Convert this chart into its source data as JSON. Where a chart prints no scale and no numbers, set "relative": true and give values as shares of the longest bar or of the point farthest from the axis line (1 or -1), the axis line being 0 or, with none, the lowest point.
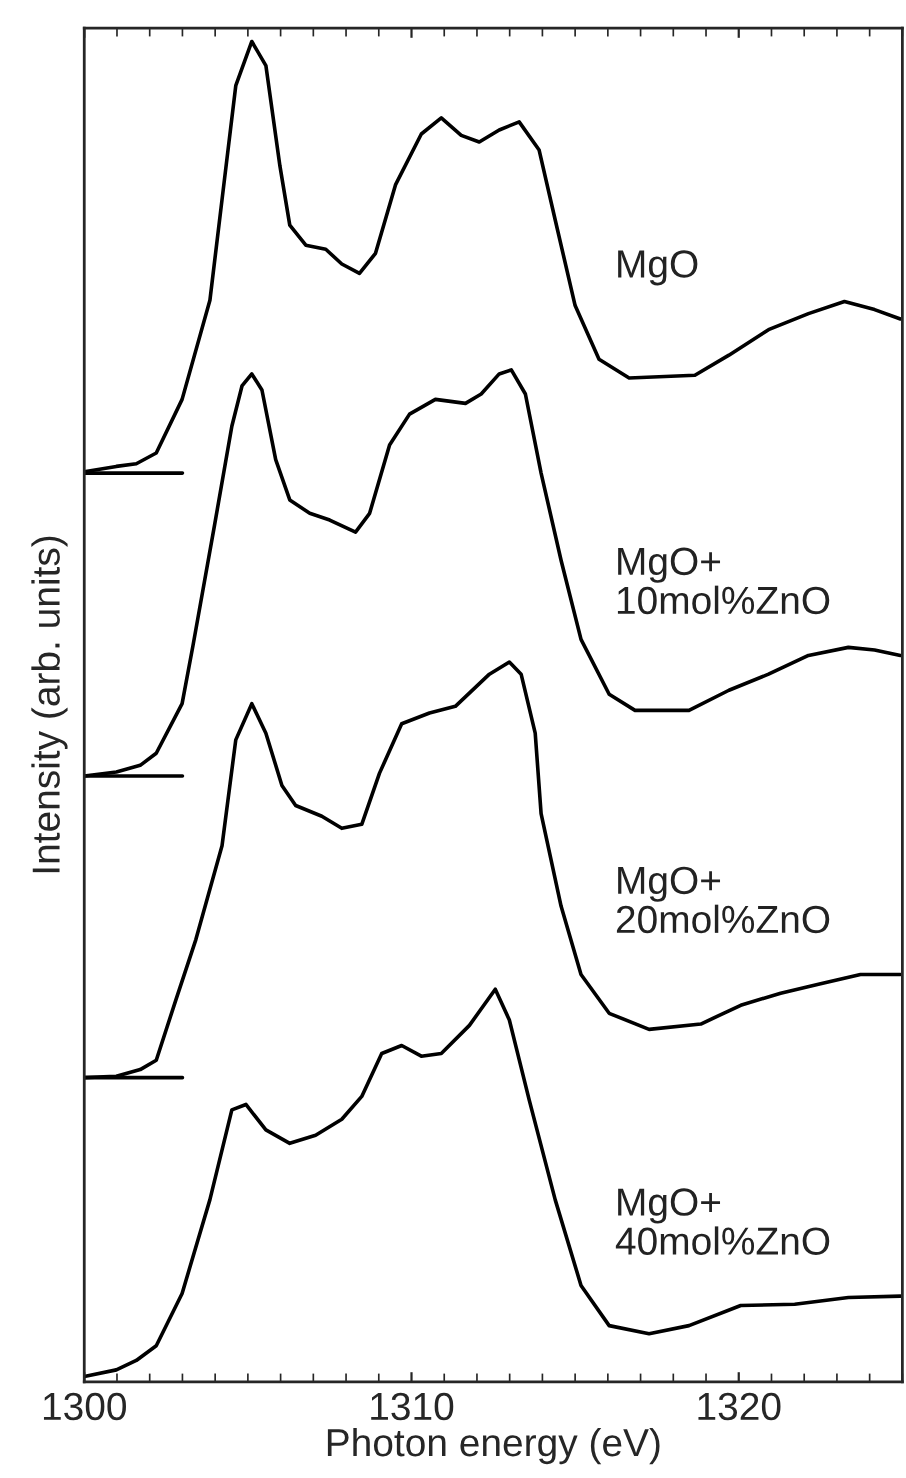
{
  "chart_data": {
    "type": "line",
    "relative": true,
    "xlabel": "Photon energy (eV)",
    "ylabel": "Intensity (arb. units)",
    "xlim": [
      1300,
      1325
    ],
    "xticks": [
      1300,
      1310,
      1320
    ],
    "grid": false,
    "legend": false,
    "series": [
      {
        "name": "MgO",
        "color": "#000000",
        "x": [
          1300.0,
          1300.98,
          1301.59,
          1302.2,
          1302.99,
          1303.84,
          1304.21,
          1304.63,
          1305.12,
          1305.55,
          1305.98,
          1306.28,
          1306.77,
          1307.38,
          1307.87,
          1308.41,
          1308.9,
          1309.51,
          1310.3,
          1310.91,
          1311.52,
          1312.07,
          1312.68,
          1313.29,
          1313.9,
          1314.39,
          1315.0,
          1315.73,
          1316.65,
          1318.66,
          1319.7,
          1320.91,
          1322.13,
          1323.23,
          1324.15,
          1324.94
        ],
        "values": [
          0.679,
          0.683,
          0.685,
          0.693,
          0.733,
          0.807,
          0.882,
          0.967,
          1.0,
          0.982,
          0.907,
          0.863,
          0.848,
          0.845,
          0.834,
          0.827,
          0.842,
          0.893,
          0.931,
          0.943,
          0.93,
          0.925,
          0.934,
          0.94,
          0.919,
          0.867,
          0.803,
          0.763,
          0.749,
          0.751,
          0.766,
          0.785,
          0.797,
          0.806,
          0.8,
          0.793
        ]
      },
      {
        "name": "MgO+\n10mol%ZnO",
        "color": "#000000",
        "x": [
          1300.0,
          1300.98,
          1301.71,
          1302.2,
          1302.99,
          1303.32,
          1303.98,
          1304.51,
          1304.82,
          1305.12,
          1305.43,
          1305.85,
          1306.28,
          1306.89,
          1307.5,
          1308.29,
          1308.72,
          1309.33,
          1309.94,
          1310.73,
          1311.65,
          1312.13,
          1312.68,
          1313.05,
          1313.48,
          1313.96,
          1314.57,
          1315.18,
          1316.04,
          1316.83,
          1318.48,
          1319.7,
          1320.91,
          1322.13,
          1323.35,
          1324.15,
          1324.94
        ],
        "values": [
          0.452,
          0.455,
          0.46,
          0.469,
          0.506,
          0.549,
          0.639,
          0.713,
          0.743,
          0.752,
          0.74,
          0.688,
          0.658,
          0.648,
          0.643,
          0.634,
          0.648,
          0.699,
          0.722,
          0.733,
          0.73,
          0.737,
          0.752,
          0.755,
          0.737,
          0.678,
          0.613,
          0.554,
          0.513,
          0.501,
          0.501,
          0.516,
          0.528,
          0.542,
          0.548,
          0.546,
          0.542
        ]
      },
      {
        "name": "MgO+\n20mol%ZnO",
        "color": "#000000",
        "x": [
          1300.0,
          1300.98,
          1301.71,
          1302.2,
          1302.8,
          1303.41,
          1304.21,
          1304.63,
          1305.12,
          1305.55,
          1306.04,
          1306.46,
          1307.26,
          1307.87,
          1308.48,
          1309.02,
          1309.7,
          1310.55,
          1311.34,
          1312.38,
          1312.99,
          1313.35,
          1313.78,
          1313.96,
          1314.57,
          1315.18,
          1316.04,
          1317.26,
          1318.84,
          1320.06,
          1321.28,
          1322.5,
          1323.72,
          1324.94
        ],
        "values": [
          0.227,
          0.228,
          0.233,
          0.24,
          0.285,
          0.33,
          0.4,
          0.479,
          0.506,
          0.484,
          0.445,
          0.43,
          0.422,
          0.413,
          0.416,
          0.454,
          0.491,
          0.499,
          0.504,
          0.528,
          0.537,
          0.528,
          0.484,
          0.424,
          0.355,
          0.304,
          0.275,
          0.263,
          0.267,
          0.281,
          0.29,
          0.297,
          0.304,
          0.304
        ]
      },
      {
        "name": "MgO+\n40mol%ZnO",
        "color": "#000000",
        "x": [
          1300.0,
          1300.98,
          1301.59,
          1302.2,
          1302.99,
          1303.84,
          1304.51,
          1304.94,
          1305.55,
          1306.28,
          1307.07,
          1307.87,
          1308.48,
          1309.09,
          1309.7,
          1310.3,
          1310.91,
          1311.77,
          1312.56,
          1312.99,
          1313.6,
          1314.39,
          1315.18,
          1316.04,
          1317.26,
          1318.48,
          1320.06,
          1321.71,
          1323.35,
          1324.94
        ],
        "values": [
          0.004,
          0.009,
          0.016,
          0.027,
          0.066,
          0.136,
          0.203,
          0.207,
          0.188,
          0.178,
          0.184,
          0.196,
          0.213,
          0.245,
          0.251,
          0.243,
          0.245,
          0.266,
          0.293,
          0.27,
          0.21,
          0.136,
          0.072,
          0.042,
          0.036,
          0.042,
          0.057,
          0.058,
          0.063,
          0.064
        ]
      },
      {
        "color": "#000000",
        "x": [
          1300,
          1303
        ],
        "values": [
          0.678,
          0.678
        ]
      },
      {
        "color": "#000000",
        "x": [
          1300,
          1303
        ],
        "values": [
          0.452,
          0.452
        ]
      },
      {
        "color": "#000000",
        "x": [
          1300,
          1303
        ],
        "values": [
          0.227,
          0.227
        ]
      }
    ]
  }
}
